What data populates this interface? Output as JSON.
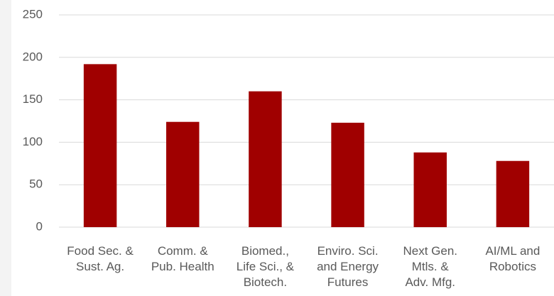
{
  "chart_data": {
    "type": "bar",
    "categories": [
      "Food Sec. &\nSust. Ag.",
      "Comm. &\nPub. Health",
      "Biomed.,\nLife Sci., &\nBiotech.",
      "Enviro. Sci.\nand Energy\nFutures",
      "Next Gen.\nMtls. &\nAdv. Mfg.",
      "AI/ML and\nRobotics"
    ],
    "values": [
      192,
      124,
      160,
      123,
      88,
      78
    ],
    "color": "#a00000",
    "ylim": [
      0,
      250
    ],
    "yticks": [
      0,
      50,
      100,
      150,
      200,
      250
    ],
    "grid": true
  }
}
